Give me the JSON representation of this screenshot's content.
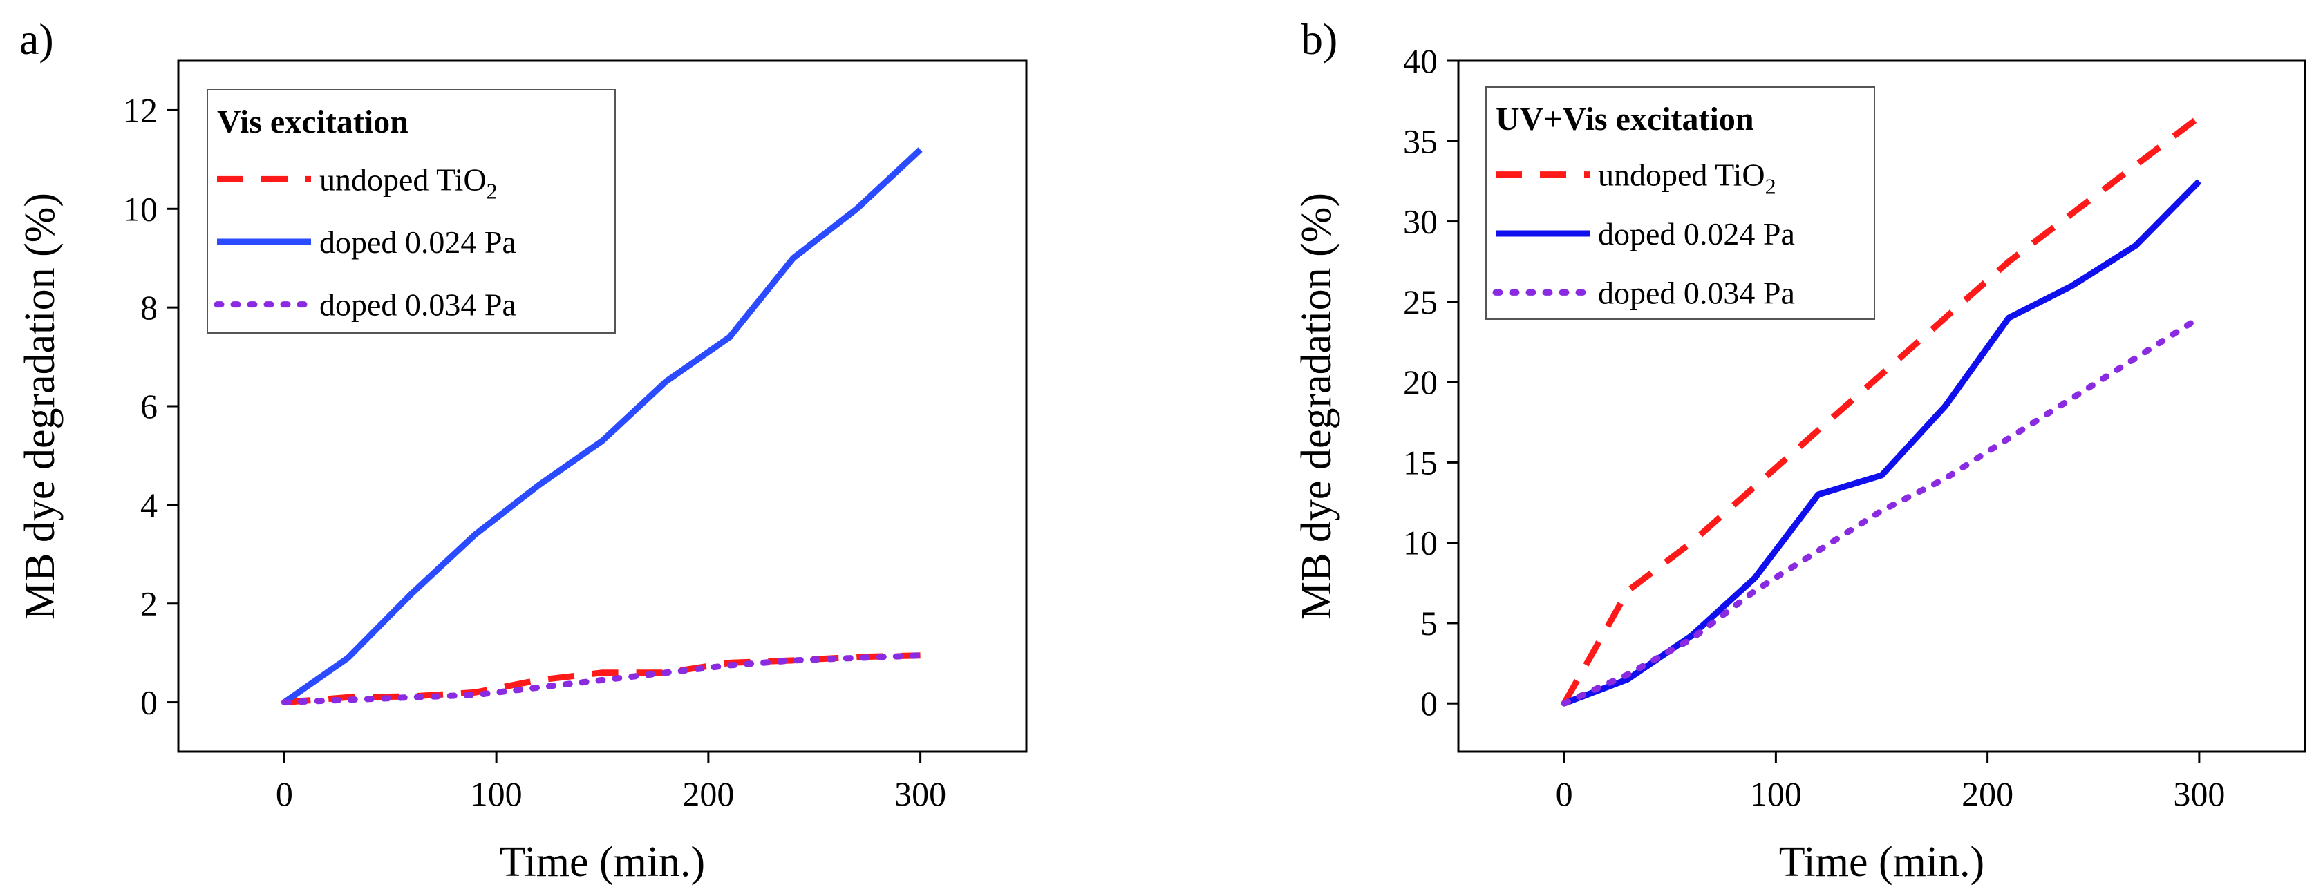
{
  "chart_data": [
    {
      "type": "line",
      "panel_label": "a)",
      "legend_title": "Vis excitation",
      "xlabel": "Time (min.)",
      "ylabel": "MB dye degradation (%)",
      "xlim": [
        -50,
        350
      ],
      "ylim": [
        -1,
        13
      ],
      "xticks": [
        0,
        100,
        200,
        300
      ],
      "yticks": [
        0,
        2,
        4,
        6,
        8,
        10,
        12
      ],
      "xtick_labels": [
        "0",
        "100",
        "200",
        "300"
      ],
      "ytick_labels": [
        "0",
        "2",
        "4",
        "6",
        "8",
        "10",
        "12"
      ],
      "legend_position": "top-left",
      "series": [
        {
          "name": "undoped TiO",
          "name_sub": "2",
          "style": "dashed",
          "color": "#ff1a1a",
          "x": [
            0,
            30,
            60,
            90,
            120,
            150,
            180,
            210,
            240,
            270,
            300
          ],
          "y": [
            0,
            0.1,
            0.12,
            0.2,
            0.45,
            0.6,
            0.6,
            0.8,
            0.85,
            0.92,
            0.95
          ]
        },
        {
          "name": "doped 0.024 Pa",
          "style": "solid",
          "color": "#2a4bff",
          "x": [
            0,
            30,
            60,
            90,
            120,
            150,
            180,
            210,
            240,
            270,
            300
          ],
          "y": [
            0,
            0.9,
            2.2,
            3.4,
            4.4,
            5.3,
            6.5,
            7.4,
            9.0,
            10.0,
            11.2
          ]
        },
        {
          "name": "doped 0.034 Pa",
          "style": "dotted",
          "color": "#8a2be2",
          "x": [
            0,
            30,
            60,
            90,
            120,
            150,
            180,
            210,
            240,
            270,
            300
          ],
          "y": [
            0,
            0.05,
            0.1,
            0.15,
            0.3,
            0.45,
            0.6,
            0.75,
            0.85,
            0.9,
            0.95
          ]
        }
      ]
    },
    {
      "type": "line",
      "panel_label": "b)",
      "legend_title": "UV+Vis excitation",
      "xlabel": "Time (min.)",
      "ylabel": "MB dye degradation (%)",
      "xlim": [
        -50,
        350
      ],
      "ylim": [
        -3,
        40
      ],
      "xticks": [
        0,
        100,
        200,
        300
      ],
      "yticks": [
        0,
        5,
        10,
        15,
        20,
        25,
        30,
        35,
        40
      ],
      "xtick_labels": [
        "0",
        "100",
        "200",
        "300"
      ],
      "ytick_labels": [
        "0",
        "5",
        "10",
        "15",
        "20",
        "25",
        "30",
        "35",
        "40"
      ],
      "legend_position": "top-left",
      "series": [
        {
          "name": "undoped TiO",
          "name_sub": "2",
          "style": "dashed",
          "color": "#ff1a1a",
          "x": [
            0,
            30,
            60,
            90,
            120,
            150,
            180,
            210,
            240,
            270,
            300
          ],
          "y": [
            0,
            7,
            10,
            13.5,
            17,
            20.5,
            24,
            27.5,
            30.5,
            33.5,
            36.5
          ]
        },
        {
          "name": "doped 0.024 Pa",
          "style": "solid",
          "color": "#1010ee",
          "x": [
            0,
            30,
            60,
            90,
            120,
            150,
            180,
            210,
            240,
            270,
            300
          ],
          "y": [
            0,
            1.5,
            4.2,
            7.8,
            13,
            14.2,
            18.5,
            24,
            26,
            28.5,
            32.5
          ]
        },
        {
          "name": "doped 0.034 Pa",
          "style": "dotted",
          "color": "#8a2be2",
          "x": [
            0,
            30,
            60,
            90,
            120,
            150,
            180,
            210,
            240,
            270,
            300
          ],
          "y": [
            0,
            1.8,
            4.0,
            7.0,
            9.5,
            12.0,
            14.0,
            16.5,
            19.0,
            21.5,
            24.0
          ]
        }
      ]
    }
  ]
}
